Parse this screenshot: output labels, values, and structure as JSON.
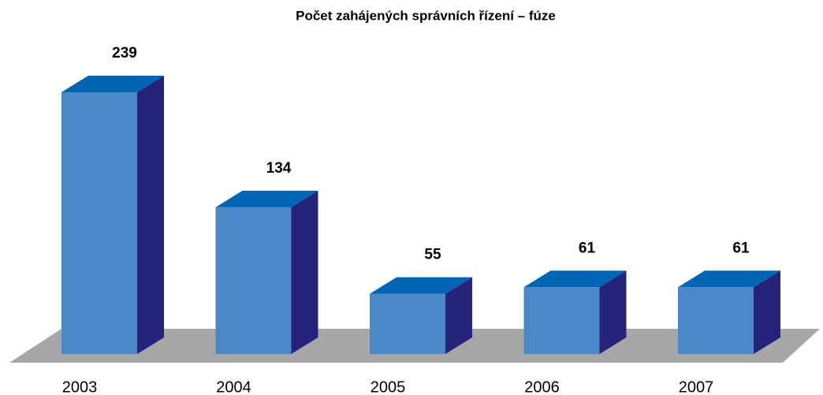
{
  "chart_data": {
    "type": "bar3d",
    "title": "Počet zahájených správních řízení – fúze",
    "categories": [
      "2003",
      "2004",
      "2005",
      "2006",
      "2007"
    ],
    "values": [
      239,
      134,
      55,
      61,
      61
    ],
    "colors": {
      "front": "#4a88c8",
      "top": "#0066b3",
      "side": "#25237a",
      "floor": "#a7a7a9"
    }
  }
}
